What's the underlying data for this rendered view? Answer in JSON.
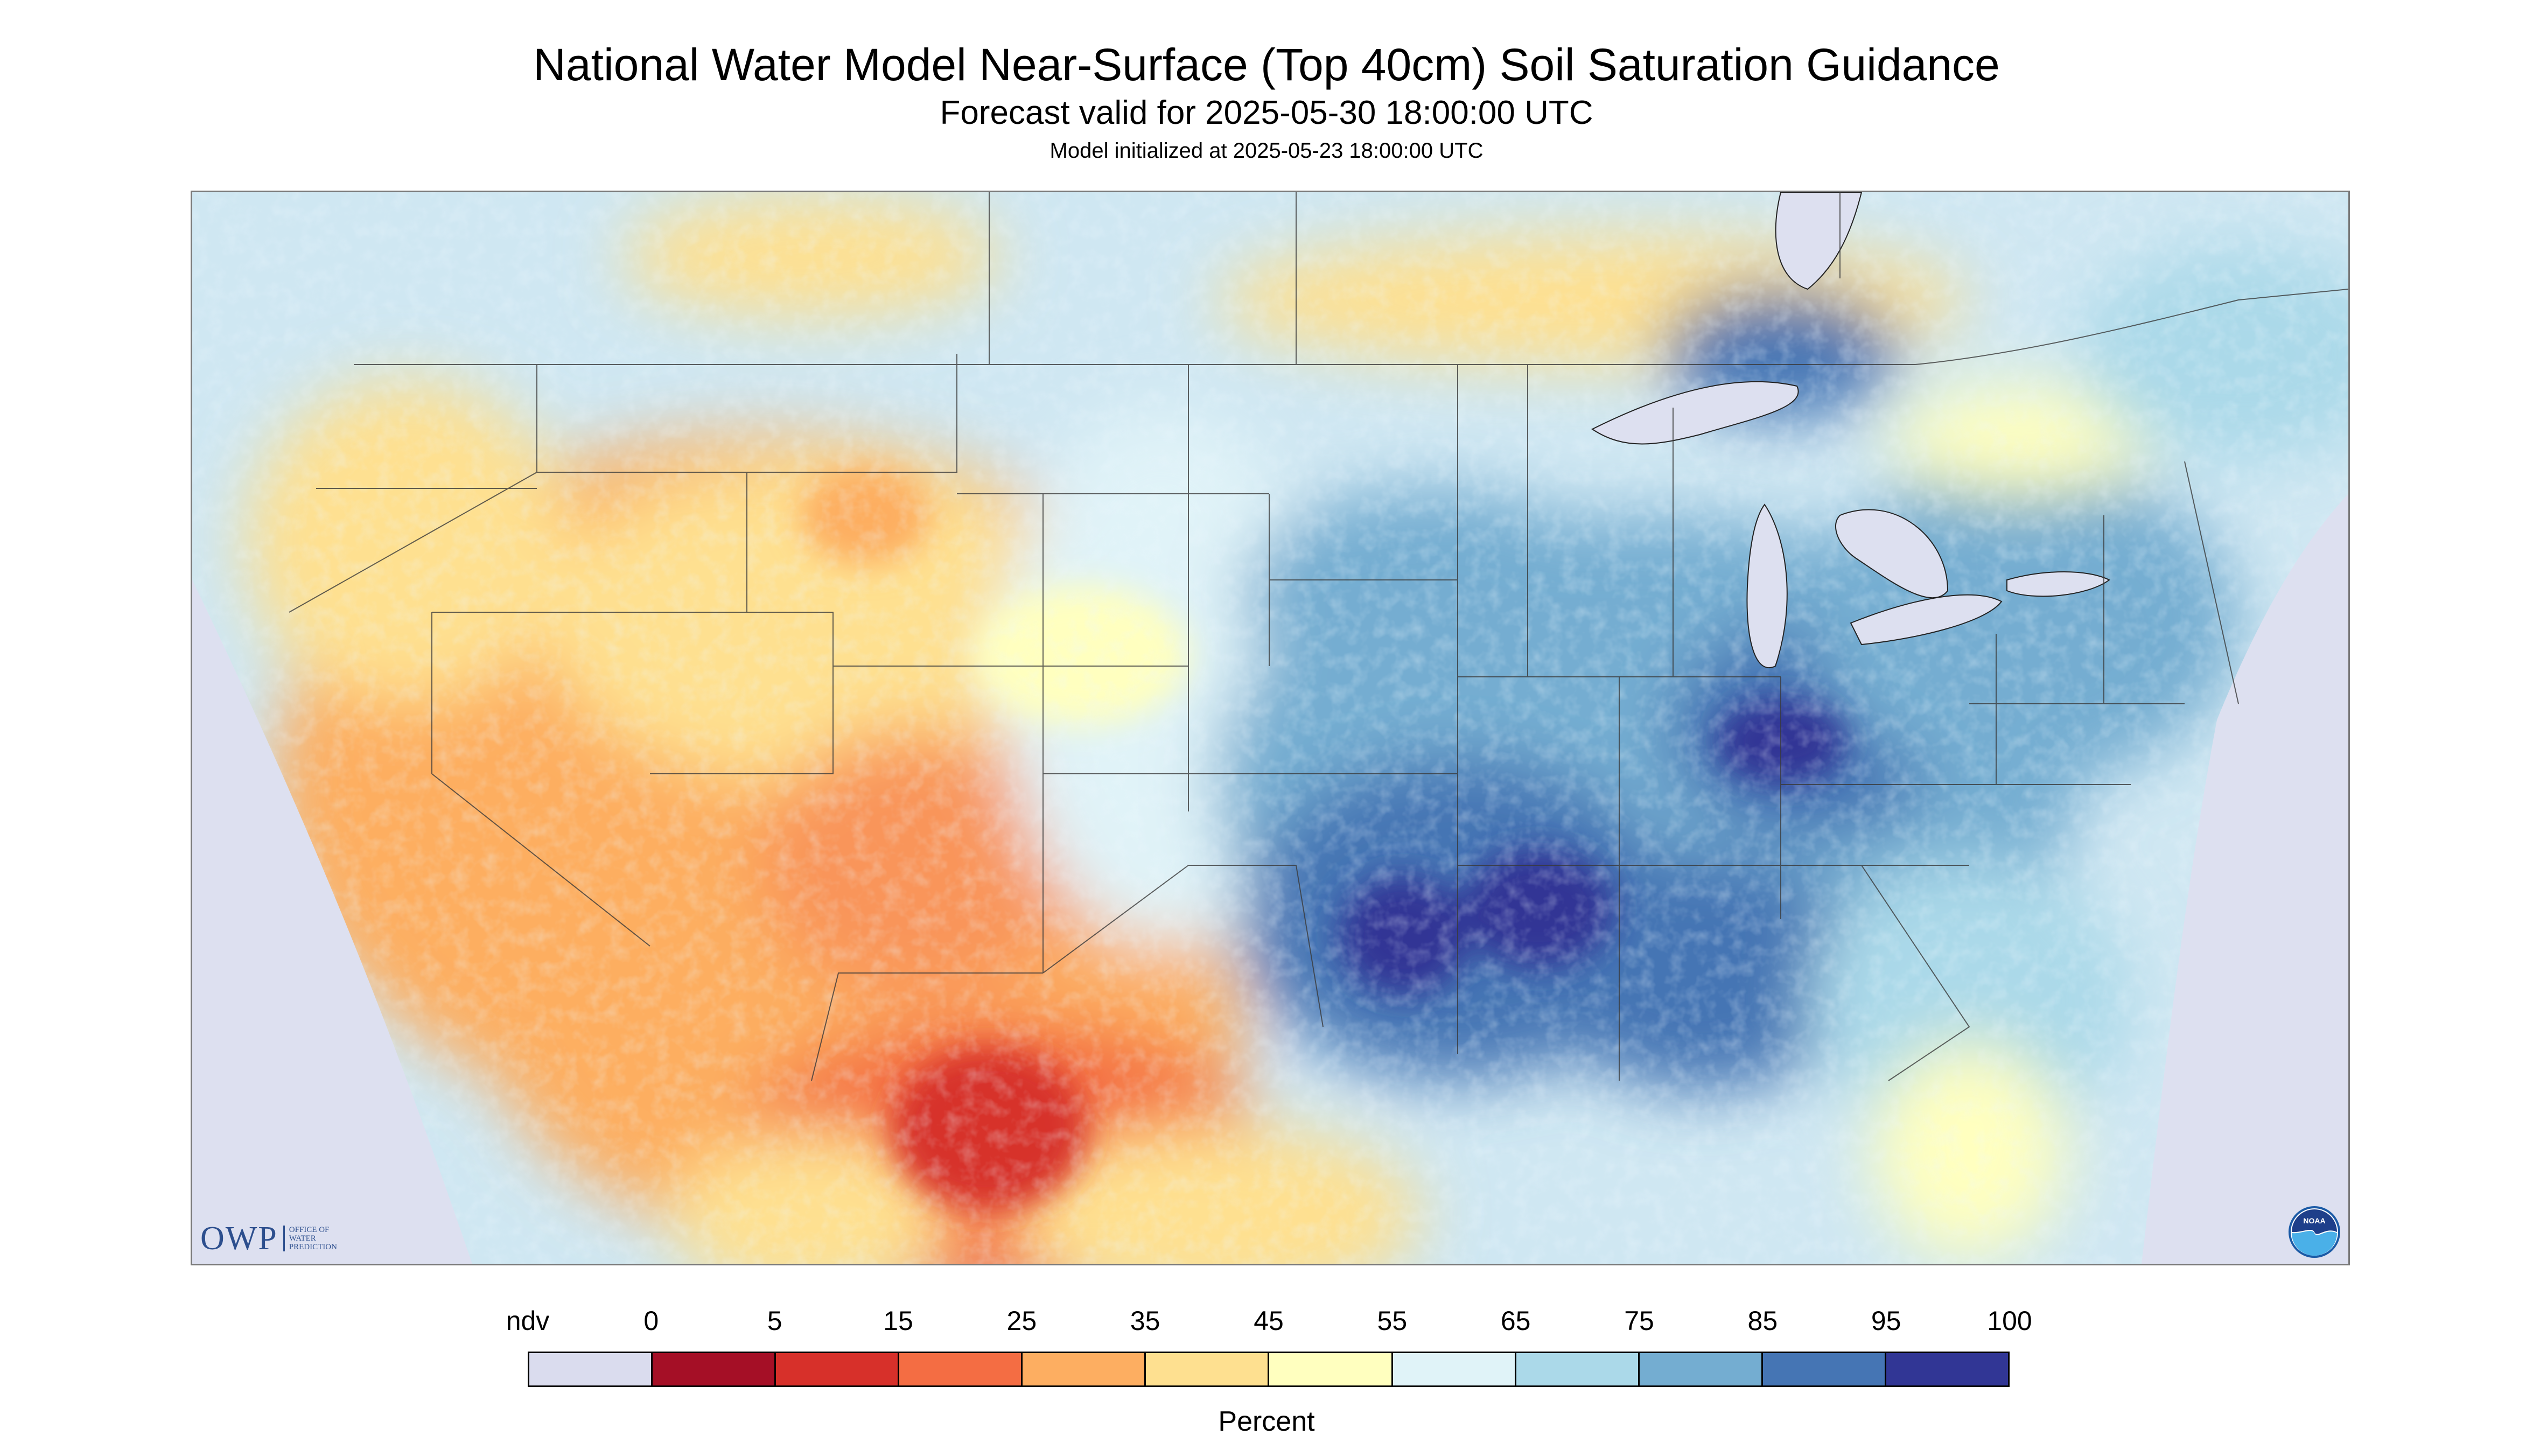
{
  "header": {
    "title": "National Water Model Near-Surface (Top 40cm) Soil Saturation Guidance",
    "subtitle": "Forecast valid for 2025-05-30 18:00:00 UTC",
    "init": "Model initialized at 2025-05-23 18:00:00 UTC"
  },
  "map": {
    "region": "CONUS",
    "variable": "Near-surface (top 40cm) soil saturation",
    "no_data_color": "#dde0f0",
    "water_color": "#dde0f0",
    "border_color": "#333333"
  },
  "logos": {
    "owp_letters": "OWP",
    "owp_line1": "OFFICE OF",
    "owp_line2": "WATER",
    "owp_line3": "PREDICTION",
    "noaa_text": "NOAA"
  },
  "legend": {
    "units": "Percent",
    "labels": [
      "ndv",
      "0",
      "5",
      "15",
      "25",
      "35",
      "45",
      "55",
      "65",
      "75",
      "85",
      "95",
      "100"
    ],
    "bins": [
      {
        "from": "ndv",
        "color": "#dadcee"
      },
      {
        "from": "0",
        "to": "5",
        "color": "#a50f26"
      },
      {
        "from": "5",
        "to": "15",
        "color": "#d7302a"
      },
      {
        "from": "15",
        "to": "25",
        "color": "#f46d43"
      },
      {
        "from": "25",
        "to": "35",
        "color": "#fdae61"
      },
      {
        "from": "35",
        "to": "45",
        "color": "#fee090"
      },
      {
        "from": "45",
        "to": "55",
        "color": "#ffffbf"
      },
      {
        "from": "55",
        "to": "65",
        "color": "#e0f3f8"
      },
      {
        "from": "65",
        "to": "75",
        "color": "#abd9e9"
      },
      {
        "from": "75",
        "to": "85",
        "color": "#74add1"
      },
      {
        "from": "85",
        "to": "95",
        "color": "#4575b4"
      },
      {
        "from": "95",
        "to": "100",
        "color": "#313695"
      }
    ]
  }
}
